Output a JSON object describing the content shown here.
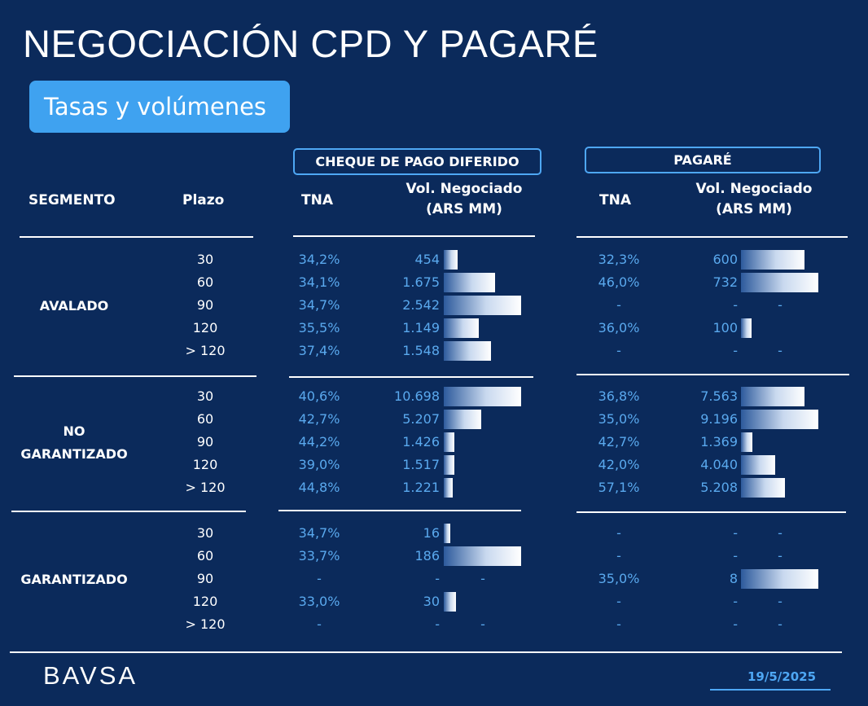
{
  "title": "NEGOCIACIÓN CPD Y PAGARÉ",
  "subtitle": "Tasas y volúmenes",
  "groups": {
    "cpd": "CHEQUE DE PAGO DIFERIDO",
    "pagare": "PAGARÉ"
  },
  "headers": {
    "segmento": "SEGMENTO",
    "plazo": "Plazo",
    "tna": "TNA",
    "vol_line1": "Vol. Negociado",
    "vol_line2": "(ARS MM)"
  },
  "colors": {
    "background": "#0b2a5b",
    "accent": "#4ea7f4",
    "pill": "#3fa2f0",
    "value_text": "#5aa9ee"
  },
  "segments": [
    {
      "name_lines": [
        "AVALADO"
      ],
      "rows": [
        {
          "plazo": "30",
          "cpd_tna": "34,2%",
          "cpd_vol": "454",
          "cpd_bar": 454,
          "pag_tna": "32,3%",
          "pag_vol": "600",
          "pag_bar": 600
        },
        {
          "plazo": "60",
          "cpd_tna": "34,1%",
          "cpd_vol": "1.675",
          "cpd_bar": 1675,
          "pag_tna": "46,0%",
          "pag_vol": "732",
          "pag_bar": 732
        },
        {
          "plazo": "90",
          "cpd_tna": "34,7%",
          "cpd_vol": "2.542",
          "cpd_bar": 2542,
          "pag_tna": "-",
          "pag_vol": "-",
          "pag_bar": 0
        },
        {
          "plazo": "120",
          "cpd_tna": "35,5%",
          "cpd_vol": "1.149",
          "cpd_bar": 1149,
          "pag_tna": "36,0%",
          "pag_vol": "100",
          "pag_bar": 100
        },
        {
          "plazo": "> 120",
          "cpd_tna": "37,4%",
          "cpd_vol": "1.548",
          "cpd_bar": 1548,
          "pag_tna": "-",
          "pag_vol": "-",
          "pag_bar": 0
        }
      ]
    },
    {
      "name_lines": [
        "NO",
        "GARANTIZADO"
      ],
      "rows": [
        {
          "plazo": "30",
          "cpd_tna": "40,6%",
          "cpd_vol": "10.698",
          "cpd_bar": 10698,
          "pag_tna": "36,8%",
          "pag_vol": "7.563",
          "pag_bar": 7563
        },
        {
          "plazo": "60",
          "cpd_tna": "42,7%",
          "cpd_vol": "5.207",
          "cpd_bar": 5207,
          "pag_tna": "35,0%",
          "pag_vol": "9.196",
          "pag_bar": 9196
        },
        {
          "plazo": "90",
          "cpd_tna": "44,2%",
          "cpd_vol": "1.426",
          "cpd_bar": 1426,
          "pag_tna": "42,7%",
          "pag_vol": "1.369",
          "pag_bar": 1369
        },
        {
          "plazo": "120",
          "cpd_tna": "39,0%",
          "cpd_vol": "1.517",
          "cpd_bar": 1517,
          "pag_tna": "42,0%",
          "pag_vol": "4.040",
          "pag_bar": 4040
        },
        {
          "plazo": "> 120",
          "cpd_tna": "44,8%",
          "cpd_vol": "1.221",
          "cpd_bar": 1221,
          "pag_tna": "57,1%",
          "pag_vol": "5.208",
          "pag_bar": 5208
        }
      ]
    },
    {
      "name_lines": [
        "GARANTIZADO"
      ],
      "rows": [
        {
          "plazo": "30",
          "cpd_tna": "34,7%",
          "cpd_vol": "16",
          "cpd_bar": 16,
          "pag_tna": "-",
          "pag_vol": "-",
          "pag_bar": 0
        },
        {
          "plazo": "60",
          "cpd_tna": "33,7%",
          "cpd_vol": "186",
          "cpd_bar": 186,
          "pag_tna": "-",
          "pag_vol": "-",
          "pag_bar": 0
        },
        {
          "plazo": "90",
          "cpd_tna": "-",
          "cpd_vol": "-",
          "cpd_bar": 0,
          "pag_tna": "35,0%",
          "pag_vol": "8",
          "pag_bar": 8
        },
        {
          "plazo": "120",
          "cpd_tna": "33,0%",
          "cpd_vol": "30",
          "cpd_bar": 30,
          "pag_tna": "-",
          "pag_vol": "-",
          "pag_bar": 0
        },
        {
          "plazo": "> 120",
          "cpd_tna": "-",
          "cpd_vol": "-",
          "cpd_bar": 0,
          "pag_tna": "-",
          "pag_vol": "-",
          "pag_bar": 0
        }
      ]
    }
  ],
  "footer": {
    "logo": "BAVSA",
    "date": "19/5/2025"
  }
}
